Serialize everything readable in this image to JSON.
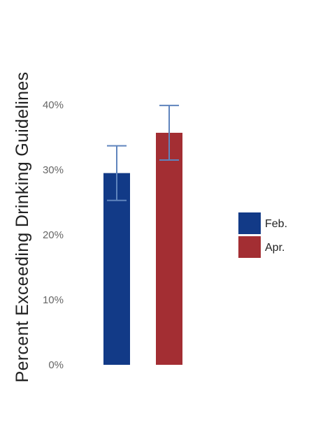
{
  "chart_data": {
    "type": "bar",
    "ylabel": "Percent Exceeding Drinking Guidelines",
    "xlabel": "",
    "ylim": [
      0,
      40
    ],
    "yticks": [
      0,
      10,
      20,
      30,
      40
    ],
    "ytick_labels": [
      "0%",
      "10%",
      "20%",
      "30%",
      "40%"
    ],
    "grid": false,
    "legend_position": "right",
    "series": [
      {
        "name": "Feb.",
        "value": 29.5,
        "error_low": 25.3,
        "error_high": 33.7,
        "color": "#123a87"
      },
      {
        "name": "Apr.",
        "value": 35.7,
        "error_low": 31.5,
        "error_high": 39.9,
        "color": "#a32e33"
      }
    ],
    "error_bar_color": "#5f84bd"
  }
}
